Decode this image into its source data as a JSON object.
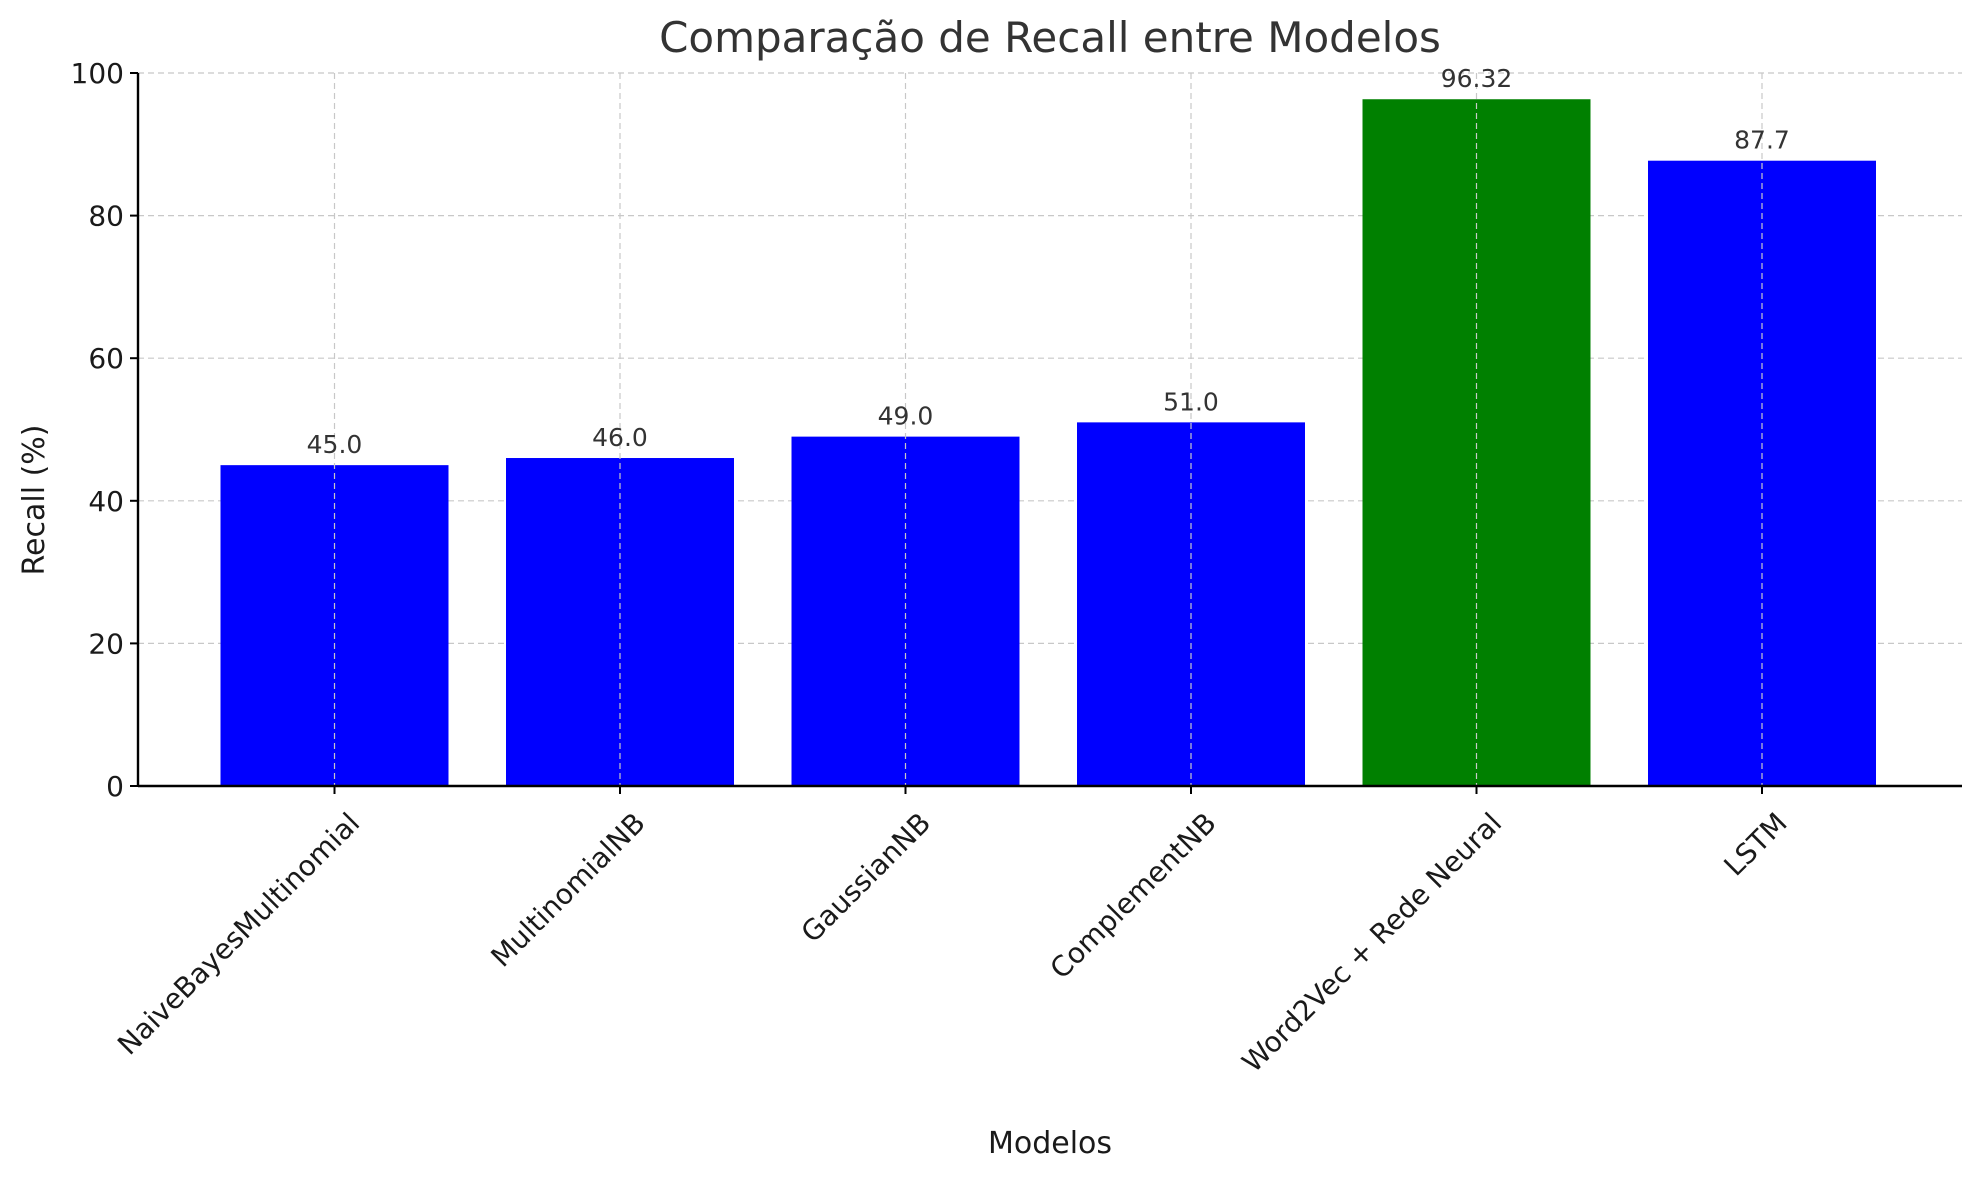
{
  "chart_data": {
    "type": "bar",
    "title": "Comparação de Recall entre Modelos",
    "xlabel": "Modelos",
    "ylabel": "Recall (%)",
    "categories": [
      "NaiveBayesMultinomial",
      "MultinomialNB",
      "GaussianNB",
      "ComplementNB",
      "Word2Vec + Rede Neural",
      "LSTM"
    ],
    "values": [
      45.0,
      46.0,
      49.0,
      51.0,
      96.32,
      87.7
    ],
    "value_labels": [
      "45.0",
      "46.0",
      "49.0",
      "51.0",
      "96.32",
      "87.7"
    ],
    "bar_colors": [
      "#0000ff",
      "#0000ff",
      "#0000ff",
      "#0000ff",
      "#008000",
      "#0000ff"
    ],
    "ylim": [
      0,
      100
    ],
    "yticks": [
      0,
      20,
      40,
      60,
      80,
      100
    ],
    "grid": true,
    "legend": false
  }
}
